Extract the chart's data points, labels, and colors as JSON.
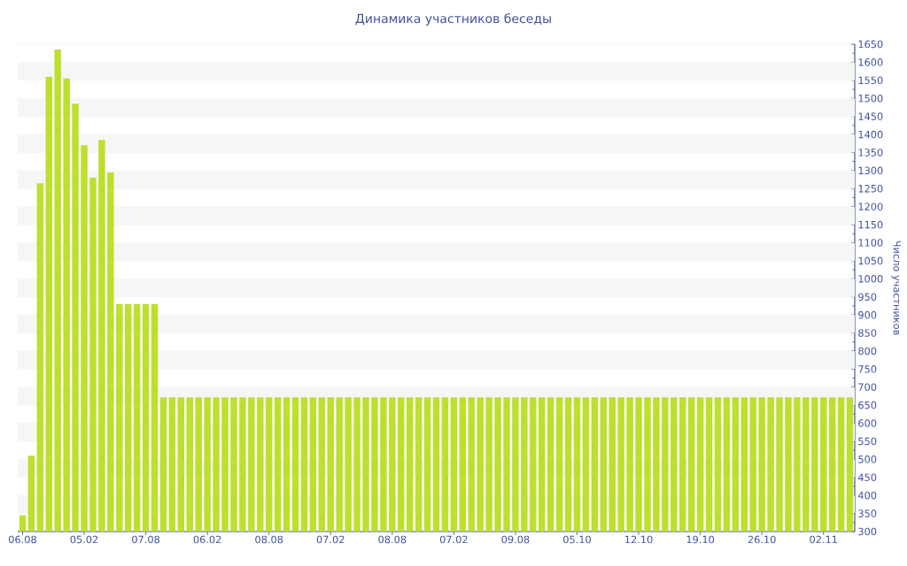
{
  "chart_data": {
    "type": "bar",
    "title": "Динамика участников беседы",
    "ylabel": "Число участников",
    "categories": [
      "06.08",
      null,
      null,
      null,
      null,
      null,
      null,
      "05.02",
      null,
      null,
      null,
      null,
      null,
      null,
      "07.08",
      null,
      null,
      null,
      null,
      null,
      null,
      "06.02",
      null,
      null,
      null,
      null,
      null,
      null,
      "08.08",
      null,
      null,
      null,
      null,
      null,
      null,
      "07.02",
      null,
      null,
      null,
      null,
      null,
      null,
      "08.08",
      null,
      null,
      null,
      null,
      null,
      null,
      "07.02",
      null,
      null,
      null,
      null,
      null,
      null,
      "09.08",
      null,
      null,
      null,
      null,
      null,
      null,
      "05.10",
      null,
      null,
      null,
      null,
      null,
      null,
      "12.10",
      null,
      null,
      null,
      null,
      null,
      null,
      "19.10",
      null,
      null,
      null,
      null,
      null,
      null,
      "26.10",
      null,
      null,
      null,
      null,
      null,
      null,
      "02.11",
      null,
      null,
      null
    ],
    "values": [
      345,
      510,
      1265,
      1560,
      1635,
      1555,
      1485,
      1370,
      1280,
      1385,
      1295,
      930,
      930,
      930,
      930,
      930,
      672,
      672,
      672,
      672,
      672,
      672,
      672,
      672,
      672,
      672,
      672,
      672,
      672,
      672,
      672,
      672,
      672,
      672,
      672,
      672,
      672,
      672,
      672,
      672,
      672,
      672,
      672,
      672,
      672,
      672,
      672,
      672,
      672,
      672,
      672,
      672,
      672,
      672,
      672,
      672,
      672,
      672,
      672,
      672,
      672,
      672,
      672,
      672,
      672,
      672,
      672,
      672,
      672,
      672,
      672,
      672,
      672,
      672,
      672,
      672,
      672,
      672,
      672,
      672,
      672,
      672,
      672,
      672,
      672,
      672,
      672,
      672,
      672,
      672,
      672,
      672,
      672,
      672,
      672
    ],
    "color": "#bddf2e",
    "ylim": [
      300,
      1650
    ],
    "yticks": [
      300,
      350,
      400,
      450,
      500,
      550,
      600,
      650,
      700,
      750,
      800,
      850,
      900,
      950,
      1000,
      1050,
      1100,
      1150,
      1200,
      1250,
      1300,
      1350,
      1400,
      1450,
      1500,
      1550,
      1600,
      1650
    ],
    "grid": "y"
  }
}
